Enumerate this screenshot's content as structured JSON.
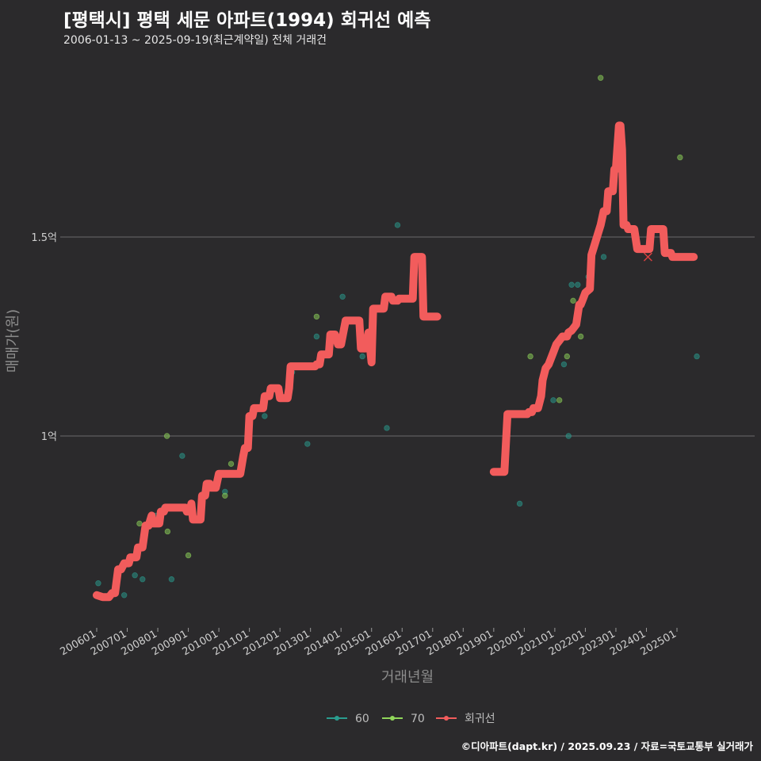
{
  "title": "[평택시] 평택 세문 아파트(1994) 회귀선 예측",
  "subtitle": "2006-01-13 ~ 2025-09-19(최근계약일) 전체 거래건",
  "caption": "©디아파트(dapt.kr) / 2025.09.23 / 자료=국토교통부 실거래가",
  "chart_data": {
    "type": "scatter",
    "xlabel": "거래년월",
    "ylabel": "매매가(원)",
    "xlim": [
      2005.75,
      2026.2
    ],
    "ylim": [
      0.52,
      1.99
    ],
    "x_ticks": [
      {
        "value": 2006.0,
        "label": "200601"
      },
      {
        "value": 2007.0,
        "label": "200701"
      },
      {
        "value": 2008.0,
        "label": "200801"
      },
      {
        "value": 2009.0,
        "label": "200901"
      },
      {
        "value": 2010.0,
        "label": "201001"
      },
      {
        "value": 2011.0,
        "label": "201101"
      },
      {
        "value": 2012.0,
        "label": "201201"
      },
      {
        "value": 2013.0,
        "label": "201301"
      },
      {
        "value": 2014.0,
        "label": "201401"
      },
      {
        "value": 2015.0,
        "label": "201501"
      },
      {
        "value": 2016.0,
        "label": "201601"
      },
      {
        "value": 2017.0,
        "label": "201701"
      },
      {
        "value": 2018.0,
        "label": "201801"
      },
      {
        "value": 2019.0,
        "label": "201901"
      },
      {
        "value": 2020.0,
        "label": "202001"
      },
      {
        "value": 2021.0,
        "label": "202101"
      },
      {
        "value": 2022.0,
        "label": "202201"
      },
      {
        "value": 2023.0,
        "label": "202301"
      },
      {
        "value": 2024.0,
        "label": "202401"
      },
      {
        "value": 2025.0,
        "label": "202501"
      }
    ],
    "y_ticks": [
      {
        "value": 1.0,
        "label": "1억"
      },
      {
        "value": 1.5,
        "label": "1.5억"
      }
    ],
    "grid": "horizontal",
    "legend_position": "bottom",
    "colors": {
      "s60": "#2a9d8f",
      "s70": "#90d65a",
      "regression": "#f25c5c"
    },
    "series": [
      {
        "name": "60",
        "type": "scatter",
        "color": "#2a9d8f",
        "points": [
          [
            2006.05,
            0.63
          ],
          [
            2006.9,
            0.6
          ],
          [
            2007.25,
            0.65
          ],
          [
            2007.5,
            0.64
          ],
          [
            2007.95,
            0.8
          ],
          [
            2008.2,
            0.82
          ],
          [
            2008.45,
            0.64
          ],
          [
            2008.8,
            0.95
          ],
          [
            2010.2,
            0.86
          ],
          [
            2011.5,
            1.05
          ],
          [
            2012.4,
            1.16
          ],
          [
            2012.9,
            0.98
          ],
          [
            2013.2,
            1.25
          ],
          [
            2014.05,
            1.35
          ],
          [
            2014.7,
            1.2
          ],
          [
            2015.5,
            1.02
          ],
          [
            2015.85,
            1.53
          ],
          [
            2016.9,
            1.3
          ],
          [
            2019.85,
            0.83
          ],
          [
            2020.95,
            1.09
          ],
          [
            2021.3,
            1.18
          ],
          [
            2021.45,
            1.0
          ],
          [
            2021.55,
            1.38
          ],
          [
            2021.75,
            1.38
          ],
          [
            2022.1,
            1.4
          ],
          [
            2022.6,
            1.45
          ],
          [
            2025.65,
            1.2
          ]
        ]
      },
      {
        "name": "70",
        "type": "scatter",
        "color": "#90d65a",
        "points": [
          [
            2007.4,
            0.78
          ],
          [
            2008.3,
            1.0
          ],
          [
            2008.32,
            0.76
          ],
          [
            2009.0,
            0.7
          ],
          [
            2010.2,
            0.85
          ],
          [
            2010.4,
            0.93
          ],
          [
            2013.2,
            1.3
          ],
          [
            2020.2,
            1.2
          ],
          [
            2021.15,
            1.09
          ],
          [
            2021.4,
            1.2
          ],
          [
            2021.6,
            1.34
          ],
          [
            2021.85,
            1.25
          ],
          [
            2022.5,
            1.9
          ],
          [
            2025.1,
            1.7
          ]
        ]
      },
      {
        "name": "회귀선",
        "type": "line",
        "color": "#f25c5c",
        "segments": [
          [
            [
              2006.0,
              0.6
            ],
            [
              2006.2,
              0.595
            ],
            [
              2006.4,
              0.595
            ],
            [
              2006.5,
              0.605
            ],
            [
              2006.6,
              0.605
            ],
            [
              2006.7,
              0.665
            ],
            [
              2006.8,
              0.665
            ],
            [
              2006.9,
              0.68
            ],
            [
              2007.05,
              0.68
            ],
            [
              2007.1,
              0.695
            ],
            [
              2007.3,
              0.695
            ],
            [
              2007.35,
              0.72
            ],
            [
              2007.5,
              0.72
            ],
            [
              2007.6,
              0.775
            ],
            [
              2007.7,
              0.775
            ],
            [
              2007.8,
              0.8
            ],
            [
              2007.85,
              0.78
            ],
            [
              2008.05,
              0.78
            ],
            [
              2008.1,
              0.81
            ],
            [
              2008.2,
              0.81
            ],
            [
              2008.25,
              0.82
            ],
            [
              2008.9,
              0.82
            ],
            [
              2008.95,
              0.81
            ],
            [
              2009.05,
              0.81
            ],
            [
              2009.1,
              0.83
            ],
            [
              2009.15,
              0.79
            ],
            [
              2009.4,
              0.79
            ],
            [
              2009.45,
              0.85
            ],
            [
              2009.55,
              0.85
            ],
            [
              2009.6,
              0.88
            ],
            [
              2009.7,
              0.88
            ],
            [
              2009.75,
              0.87
            ],
            [
              2009.9,
              0.87
            ],
            [
              2010.0,
              0.905
            ],
            [
              2010.7,
              0.905
            ],
            [
              2010.8,
              0.95
            ],
            [
              2010.85,
              0.97
            ],
            [
              2010.95,
              0.97
            ],
            [
              2011.0,
              1.05
            ],
            [
              2011.1,
              1.05
            ],
            [
              2011.15,
              1.07
            ],
            [
              2011.45,
              1.07
            ],
            [
              2011.5,
              1.1
            ],
            [
              2011.65,
              1.1
            ],
            [
              2011.7,
              1.12
            ],
            [
              2011.95,
              1.12
            ],
            [
              2012.0,
              1.095
            ],
            [
              2012.25,
              1.095
            ],
            [
              2012.3,
              1.12
            ],
            [
              2012.35,
              1.175
            ],
            [
              2013.15,
              1.175
            ],
            [
              2013.2,
              1.18
            ],
            [
              2013.3,
              1.18
            ],
            [
              2013.35,
              1.205
            ],
            [
              2013.6,
              1.205
            ],
            [
              2013.65,
              1.255
            ],
            [
              2013.8,
              1.255
            ],
            [
              2013.9,
              1.23
            ],
            [
              2014.0,
              1.23
            ],
            [
              2014.15,
              1.29
            ],
            [
              2014.6,
              1.29
            ],
            [
              2014.65,
              1.22
            ],
            [
              2014.8,
              1.22
            ],
            [
              2014.9,
              1.26
            ],
            [
              2015.0,
              1.185
            ],
            [
              2015.05,
              1.32
            ],
            [
              2015.4,
              1.32
            ],
            [
              2015.45,
              1.35
            ],
            [
              2015.65,
              1.35
            ],
            [
              2015.7,
              1.34
            ],
            [
              2015.85,
              1.34
            ],
            [
              2015.9,
              1.345
            ],
            [
              2016.35,
              1.345
            ],
            [
              2016.4,
              1.45
            ],
            [
              2016.65,
              1.45
            ],
            [
              2016.7,
              1.3
            ],
            [
              2017.15,
              1.3
            ]
          ],
          [
            [
              2019.0,
              0.91
            ],
            [
              2019.35,
              0.91
            ],
            [
              2019.45,
              1.055
            ],
            [
              2020.1,
              1.055
            ],
            [
              2020.15,
              1.06
            ],
            [
              2020.25,
              1.06
            ],
            [
              2020.3,
              1.07
            ],
            [
              2020.45,
              1.07
            ],
            [
              2020.55,
              1.1
            ],
            [
              2020.6,
              1.14
            ],
            [
              2020.7,
              1.17
            ],
            [
              2020.8,
              1.18
            ],
            [
              2020.95,
              1.21
            ],
            [
              2021.05,
              1.23
            ],
            [
              2021.15,
              1.24
            ],
            [
              2021.25,
              1.25
            ],
            [
              2021.4,
              1.25
            ],
            [
              2021.45,
              1.26
            ],
            [
              2021.55,
              1.265
            ],
            [
              2021.6,
              1.27
            ],
            [
              2021.7,
              1.28
            ],
            [
              2021.8,
              1.33
            ],
            [
              2021.85,
              1.33
            ],
            [
              2021.9,
              1.34
            ],
            [
              2022.0,
              1.36
            ],
            [
              2022.15,
              1.37
            ],
            [
              2022.2,
              1.455
            ],
            [
              2022.3,
              1.48
            ],
            [
              2022.4,
              1.505
            ],
            [
              2022.5,
              1.53
            ],
            [
              2022.6,
              1.565
            ],
            [
              2022.7,
              1.565
            ],
            [
              2022.75,
              1.615
            ],
            [
              2022.9,
              1.615
            ],
            [
              2022.95,
              1.67
            ],
            [
              2023.0,
              1.67
            ],
            [
              2023.1,
              1.78
            ],
            [
              2023.15,
              1.78
            ],
            [
              2023.2,
              1.72
            ],
            [
              2023.25,
              1.53
            ],
            [
              2023.35,
              1.53
            ],
            [
              2023.4,
              1.52
            ],
            [
              2023.6,
              1.52
            ],
            [
              2023.7,
              1.47
            ],
            [
              2024.1,
              1.47
            ],
            [
              2024.15,
              1.52
            ],
            [
              2024.55,
              1.52
            ],
            [
              2024.6,
              1.46
            ],
            [
              2024.8,
              1.46
            ],
            [
              2024.85,
              1.45
            ],
            [
              2025.55,
              1.45
            ]
          ]
        ],
        "marker": [
          2024.05,
          1.45
        ]
      }
    ]
  }
}
